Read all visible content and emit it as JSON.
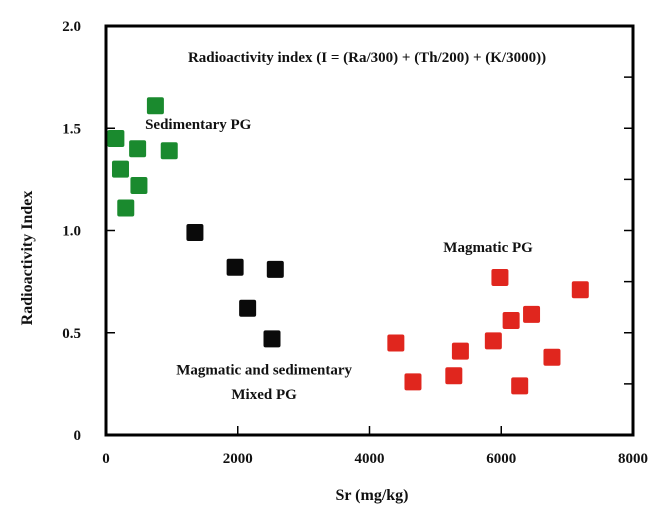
{
  "chart_data": {
    "type": "scatter",
    "title": "Radioactivity index (I = (Ra/300) + (Th/200) + (K/3000))",
    "xlabel": "Sr (mg/kg)",
    "ylabel": "Radioactivity Index",
    "xlim": [
      0,
      8000
    ],
    "ylim": [
      0,
      2.0
    ],
    "x_ticks": [
      0,
      2000,
      4000,
      6000,
      8000
    ],
    "x_tick_labels": [
      "0",
      "2000",
      "4000",
      "6000",
      "8000"
    ],
    "y_ticks": [
      0,
      0.5,
      1.0,
      1.5,
      2.0
    ],
    "y_tick_labels": [
      "0",
      "0.5",
      "1.0",
      "1.5",
      "2.0"
    ],
    "grid": false,
    "marker": "square",
    "series": [
      {
        "color": "#1a8a2e",
        "points": [
          {
            "x": 150,
            "y": 1.45
          },
          {
            "x": 220,
            "y": 1.3
          },
          {
            "x": 300,
            "y": 1.11
          },
          {
            "x": 480,
            "y": 1.4
          },
          {
            "x": 500,
            "y": 1.22
          },
          {
            "x": 750,
            "y": 1.61
          },
          {
            "x": 960,
            "y": 1.39
          }
        ]
      },
      {
        "color": "#0a0a0a",
        "points": [
          {
            "x": 1350,
            "y": 0.99
          },
          {
            "x": 1960,
            "y": 0.82
          },
          {
            "x": 2150,
            "y": 0.62
          },
          {
            "x": 2520,
            "y": 0.47
          },
          {
            "x": 2570,
            "y": 0.81
          }
        ]
      },
      {
        "color": "#e0261e",
        "points": [
          {
            "x": 4400,
            "y": 0.45
          },
          {
            "x": 4660,
            "y": 0.26
          },
          {
            "x": 5280,
            "y": 0.29
          },
          {
            "x": 5380,
            "y": 0.41
          },
          {
            "x": 5880,
            "y": 0.46
          },
          {
            "x": 5980,
            "y": 0.77
          },
          {
            "x": 6150,
            "y": 0.56
          },
          {
            "x": 6280,
            "y": 0.24
          },
          {
            "x": 6460,
            "y": 0.59
          },
          {
            "x": 6770,
            "y": 0.38
          },
          {
            "x": 7200,
            "y": 0.71
          }
        ]
      }
    ],
    "annotations": [
      {
        "text": "Sedimentary PG",
        "x": 1400,
        "y": 1.52
      },
      {
        "text": "Magmatic PG",
        "x": 5800,
        "y": 0.92
      },
      {
        "text": "Magmatic and sedimentary",
        "x": 2400,
        "y": 0.32
      },
      {
        "text": "Mixed PG",
        "x": 2400,
        "y": 0.2
      }
    ]
  }
}
